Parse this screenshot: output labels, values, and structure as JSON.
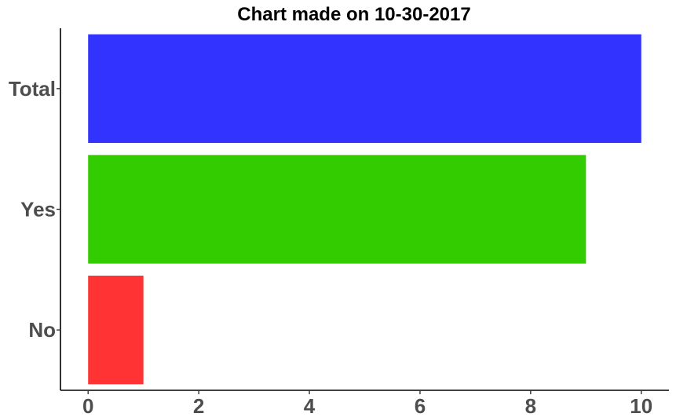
{
  "chart_data": {
    "type": "bar",
    "orientation": "horizontal",
    "title": "Chart made on 10-30-2017",
    "xlabel": "",
    "ylabel": "",
    "categories": [
      "No",
      "Yes",
      "Total"
    ],
    "values": [
      1,
      9,
      10
    ],
    "colors": [
      "#ff3333",
      "#33cc00",
      "#3333ff"
    ],
    "xlim": [
      -0.5,
      10.5
    ],
    "x_ticks": [
      0,
      2,
      4,
      6,
      8,
      10
    ],
    "x_tick_labels": [
      "0",
      "2",
      "4",
      "6",
      "8",
      "10"
    ],
    "grid": false,
    "legend": "none"
  }
}
